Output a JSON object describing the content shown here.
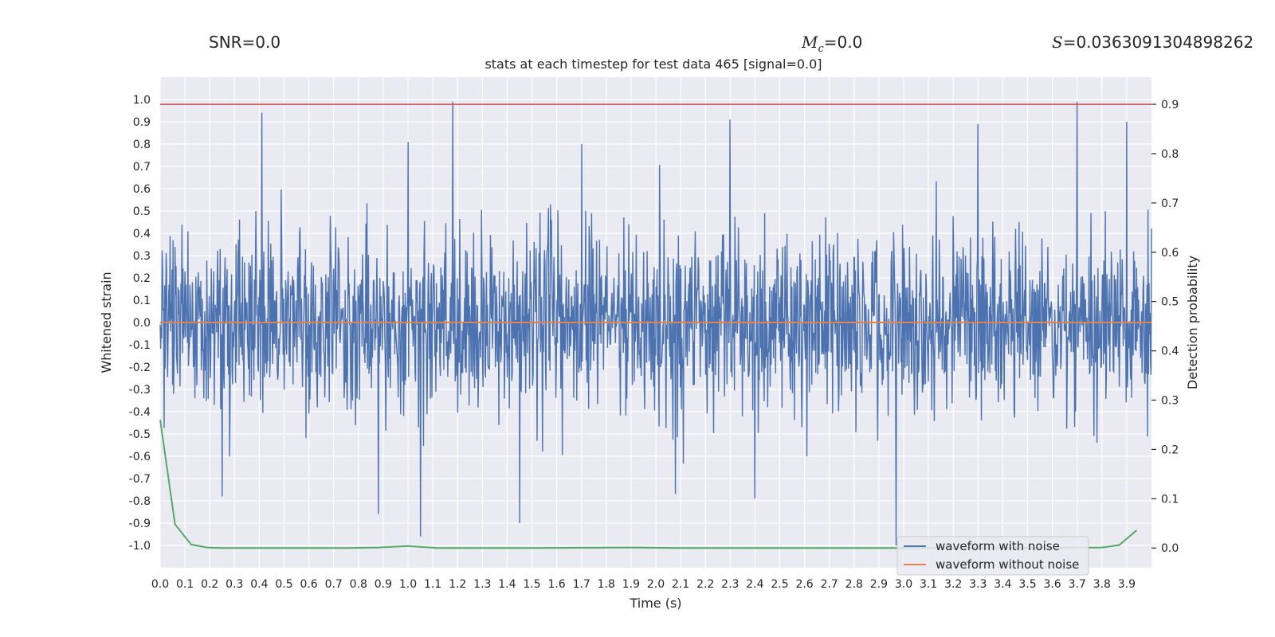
{
  "header": {
    "snr_label": "SNR=0.0",
    "mc_symbol": "M",
    "mc_subscript": "c",
    "mc_value": "=0.0",
    "s_symbol": "S",
    "s_value": "=0.0363091304898262"
  },
  "colors": {
    "background": "#eaeaf2",
    "grid": "#ffffff",
    "noisy": "#4c72b0",
    "clean": "#dd8452",
    "probability": "#55a868",
    "threshold": "#c44e52",
    "text": "#262626"
  },
  "chart_data": {
    "type": "line",
    "title": "stats at each timestep for test data 465 [signal=0.0]",
    "xlabel": "Time (s)",
    "ylabel": "Whitened strain",
    "y2label": "Detection probability",
    "xlim": [
      0.0,
      4.0
    ],
    "ylim": [
      -1.1,
      1.1
    ],
    "y2lim": [
      -0.04,
      0.955
    ],
    "x_ticks": [
      "0.0",
      "0.1",
      "0.2",
      "0.3",
      "0.4",
      "0.5",
      "0.6",
      "0.7",
      "0.8",
      "0.9",
      "1.0",
      "1.1",
      "1.2",
      "1.3",
      "1.4",
      "1.5",
      "1.6",
      "1.7",
      "1.8",
      "1.9",
      "2.0",
      "2.1",
      "2.2",
      "2.3",
      "2.4",
      "2.5",
      "2.6",
      "2.7",
      "2.8",
      "2.9",
      "3.0",
      "3.1",
      "3.2",
      "3.3",
      "3.4",
      "3.5",
      "3.6",
      "3.7",
      "3.8",
      "3.9"
    ],
    "y_ticks": [
      "-1.0",
      "-0.9",
      "-0.8",
      "-0.7",
      "-0.6",
      "-0.5",
      "-0.4",
      "-0.3",
      "-0.2",
      "-0.1",
      "0.0",
      "0.1",
      "0.2",
      "0.3",
      "0.4",
      "0.5",
      "0.6",
      "0.7",
      "0.8",
      "0.9",
      "1.0"
    ],
    "y2_ticks": [
      "0.0",
      "0.1",
      "0.2",
      "0.3",
      "0.4",
      "0.5",
      "0.6",
      "0.7",
      "0.8",
      "0.9"
    ],
    "threshold": {
      "axis": "y2",
      "value": 0.9
    },
    "series": [
      {
        "name": "waveform with noise",
        "axis": "y",
        "style": "noise",
        "sample_count": 2000,
        "sigma": 0.2,
        "peaks": [
          {
            "x": 0.41,
            "y": 0.94
          },
          {
            "x": 1.18,
            "y": 0.99
          },
          {
            "x": 1.0,
            "y": 0.81
          },
          {
            "x": 2.3,
            "y": 0.91
          },
          {
            "x": 3.7,
            "y": 0.99
          },
          {
            "x": 3.9,
            "y": 0.9
          },
          {
            "x": 3.3,
            "y": 0.89
          },
          {
            "x": 1.05,
            "y": -0.96
          },
          {
            "x": 2.97,
            "y": -1.0
          },
          {
            "x": 1.45,
            "y": -0.9
          },
          {
            "x": 0.88,
            "y": -0.86
          },
          {
            "x": 0.25,
            "y": -0.78
          },
          {
            "x": 2.4,
            "y": -0.79
          },
          {
            "x": 2.08,
            "y": -0.77
          },
          {
            "x": 1.7,
            "y": 0.8
          }
        ]
      },
      {
        "name": "waveform without noise",
        "axis": "y",
        "x": [
          0.0,
          4.0
        ],
        "y": [
          0.0,
          0.0
        ]
      },
      {
        "name": "detection probability",
        "axis": "y2",
        "x": [
          0.0,
          0.06,
          0.125,
          0.19,
          0.25,
          0.5,
          0.75,
          0.88,
          1.0,
          1.12,
          1.5,
          1.9,
          2.1,
          2.5,
          3.0,
          3.5,
          3.8,
          3.87,
          3.94
        ],
        "y": [
          0.26,
          0.048,
          0.007,
          0.001,
          0.0,
          0.0,
          0.0,
          0.001,
          0.004,
          0.0,
          0.0,
          0.001,
          0.0,
          0.0,
          0.0,
          0.0,
          0.001,
          0.006,
          0.036
        ]
      }
    ],
    "legend": {
      "position": "lower-right",
      "entries": [
        "waveform with noise",
        "waveform without noise"
      ]
    }
  }
}
